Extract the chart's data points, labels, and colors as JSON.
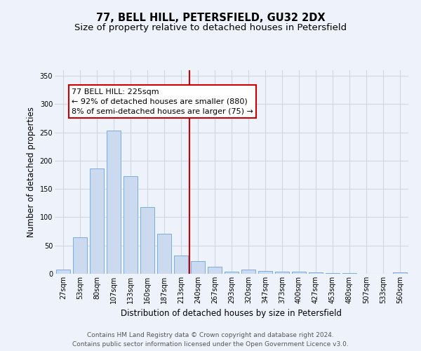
{
  "title": "77, BELL HILL, PETERSFIELD, GU32 2DX",
  "subtitle": "Size of property relative to detached houses in Petersfield",
  "xlabel": "Distribution of detached houses by size in Petersfield",
  "ylabel": "Number of detached properties",
  "categories": [
    "27sqm",
    "53sqm",
    "80sqm",
    "107sqm",
    "133sqm",
    "160sqm",
    "187sqm",
    "213sqm",
    "240sqm",
    "267sqm",
    "293sqm",
    "320sqm",
    "347sqm",
    "373sqm",
    "400sqm",
    "427sqm",
    "453sqm",
    "480sqm",
    "507sqm",
    "533sqm",
    "560sqm"
  ],
  "values": [
    7,
    65,
    186,
    253,
    172,
    118,
    71,
    32,
    22,
    12,
    4,
    8,
    5,
    4,
    4,
    3,
    1,
    1,
    0,
    0,
    3
  ],
  "bar_color": "#ccdaf0",
  "bar_edge_color": "#7aacde",
  "grid_color": "#d0d8e8",
  "background_color": "#eef2fb",
  "vline_color": "#cc0000",
  "annotation_text": "77 BELL HILL: 225sqm\n← 92% of detached houses are smaller (880)\n8% of semi-detached houses are larger (75) →",
  "annotation_box_color": "#ffffff",
  "annotation_box_edge": "#cc0000",
  "ylim": [
    0,
    360
  ],
  "yticks": [
    0,
    50,
    100,
    150,
    200,
    250,
    300,
    350
  ],
  "footer_text": "Contains HM Land Registry data © Crown copyright and database right 2024.\nContains public sector information licensed under the Open Government Licence v3.0.",
  "title_fontsize": 10.5,
  "subtitle_fontsize": 9.5,
  "xlabel_fontsize": 8.5,
  "ylabel_fontsize": 8.5,
  "tick_fontsize": 7,
  "annotation_fontsize": 8,
  "footer_fontsize": 6.5
}
